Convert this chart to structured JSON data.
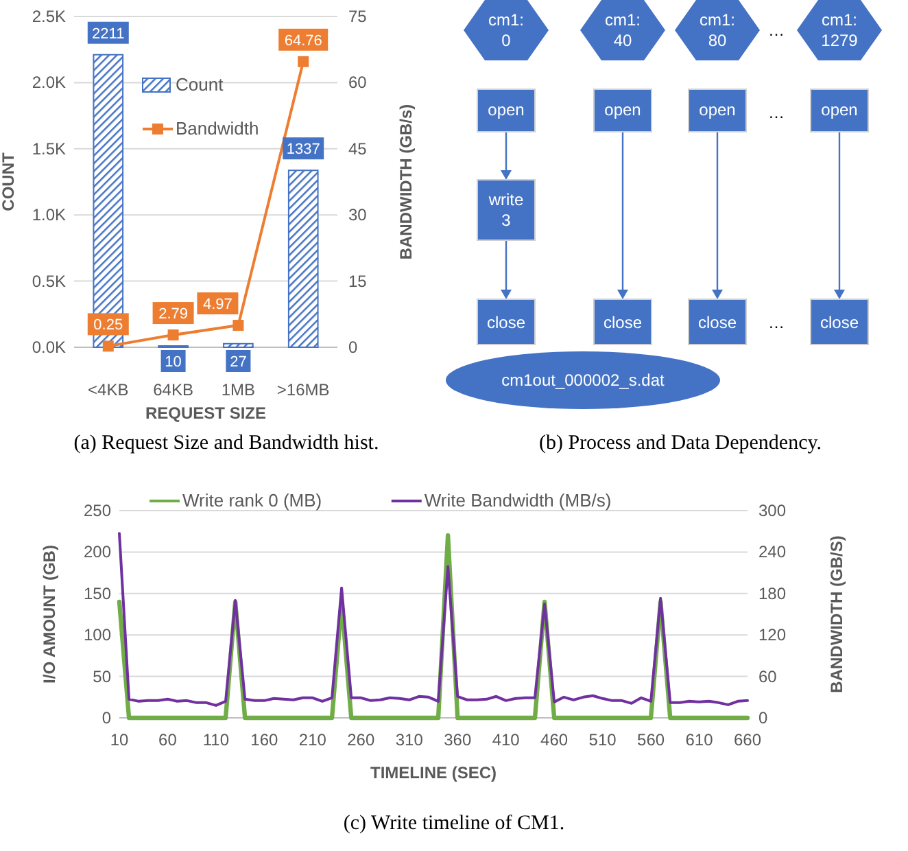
{
  "chart_data": [
    {
      "type": "bar",
      "title": "(a) Request Size and Bandwidth hist.",
      "xlabel": "REQUEST SIZE",
      "ylabel": "COUNT",
      "y2label": "BANDWIDTH (GB/s)",
      "categories": [
        "<4KB",
        "64KB",
        "1MB",
        ">16MB"
      ],
      "series": [
        {
          "name": "Count",
          "type": "bar",
          "color": "#4472c4",
          "values": [
            2211,
            10,
            27,
            1337
          ]
        },
        {
          "name": "Bandwidth",
          "type": "line",
          "axis": "y2",
          "color": "#ed7d31",
          "marker": "square",
          "values": [
            0.25,
            2.79,
            4.97,
            64.76
          ]
        }
      ],
      "ylim": [
        0,
        2500
      ],
      "yticks": [
        {
          "value": 0,
          "label": "0.0K"
        },
        {
          "value": 500,
          "label": "0.5K"
        },
        {
          "value": 1000,
          "label": "1.0K"
        },
        {
          "value": 1500,
          "label": "1.5K"
        },
        {
          "value": 2000,
          "label": "2.0K"
        },
        {
          "value": 2500,
          "label": "2.5K"
        }
      ],
      "y2lim": [
        0,
        75
      ],
      "y2ticks": [
        0,
        15,
        30,
        45,
        60,
        75
      ],
      "data_labels": true,
      "grid": "y",
      "legend": "top"
    },
    {
      "type": "other",
      "title": "(b) Process and Data Dependency.",
      "annotations": [
        "cm1:\n0",
        "cm1:\n40",
        "cm1:\n80",
        "cm1:\n1279",
        "open",
        "open",
        "open",
        "open",
        "write\n3",
        "close",
        "close",
        "close",
        "close",
        "cm1out_000002_s.dat",
        "…",
        "…",
        "…"
      ]
    },
    {
      "type": "line",
      "title": "(c) Write timeline of CM1.",
      "xlabel": "TIMELINE (SEC)",
      "ylabel": "I/O AMOUNT (GB)",
      "y2label": "BANDWIDTH (GB/S)",
      "x": [
        10,
        20,
        30,
        40,
        50,
        60,
        70,
        80,
        90,
        100,
        110,
        120,
        130,
        140,
        150,
        160,
        170,
        180,
        190,
        200,
        210,
        220,
        230,
        240,
        250,
        260,
        270,
        280,
        290,
        300,
        310,
        320,
        330,
        340,
        350,
        360,
        370,
        380,
        390,
        400,
        410,
        420,
        430,
        440,
        450,
        460,
        470,
        480,
        490,
        500,
        510,
        520,
        530,
        540,
        550,
        560,
        570,
        580,
        590,
        600,
        610,
        620,
        630,
        640,
        650,
        660
      ],
      "series": [
        {
          "name": "Write rank 0 (MB)",
          "color": "#70ad47",
          "values": [
            140,
            0,
            0,
            0,
            0,
            0,
            0,
            0,
            0,
            0,
            0,
            0,
            140,
            0,
            0,
            0,
            0,
            0,
            0,
            0,
            0,
            0,
            0,
            140,
            0,
            0,
            0,
            0,
            0,
            0,
            0,
            0,
            0,
            0,
            220,
            0,
            0,
            0,
            0,
            0,
            0,
            0,
            0,
            0,
            140,
            0,
            0,
            0,
            0,
            0,
            0,
            0,
            0,
            0,
            0,
            0,
            140,
            0,
            0,
            0,
            0,
            0,
            0,
            0,
            0,
            0
          ]
        },
        {
          "name": "Write Bandwidth (MB/s)",
          "color": "#7030a0",
          "axis": "y2",
          "values": [
            267,
            27,
            24,
            25,
            25,
            27,
            24,
            25,
            22,
            22,
            18,
            24,
            170,
            27,
            25,
            25,
            28,
            27,
            26,
            29,
            29,
            24,
            29,
            188,
            29,
            29,
            25,
            26,
            29,
            28,
            26,
            31,
            30,
            24,
            219,
            31,
            26,
            26,
            27,
            31,
            25,
            28,
            29,
            29,
            165,
            23,
            30,
            26,
            30,
            32,
            28,
            25,
            25,
            21,
            29,
            24,
            173,
            22,
            22,
            24,
            23,
            24,
            22,
            19,
            24,
            25
          ]
        }
      ],
      "xlim": [
        10,
        660
      ],
      "xticks": [
        10,
        60,
        110,
        160,
        210,
        260,
        310,
        360,
        410,
        460,
        510,
        560,
        610,
        660
      ],
      "ylim": [
        0,
        250
      ],
      "yticks": [
        0,
        50,
        100,
        150,
        200,
        250
      ],
      "y2lim": [
        0,
        300
      ],
      "y2ticks": [
        0,
        60,
        120,
        180,
        240,
        300
      ],
      "grid": "y",
      "legend": "top"
    }
  ]
}
